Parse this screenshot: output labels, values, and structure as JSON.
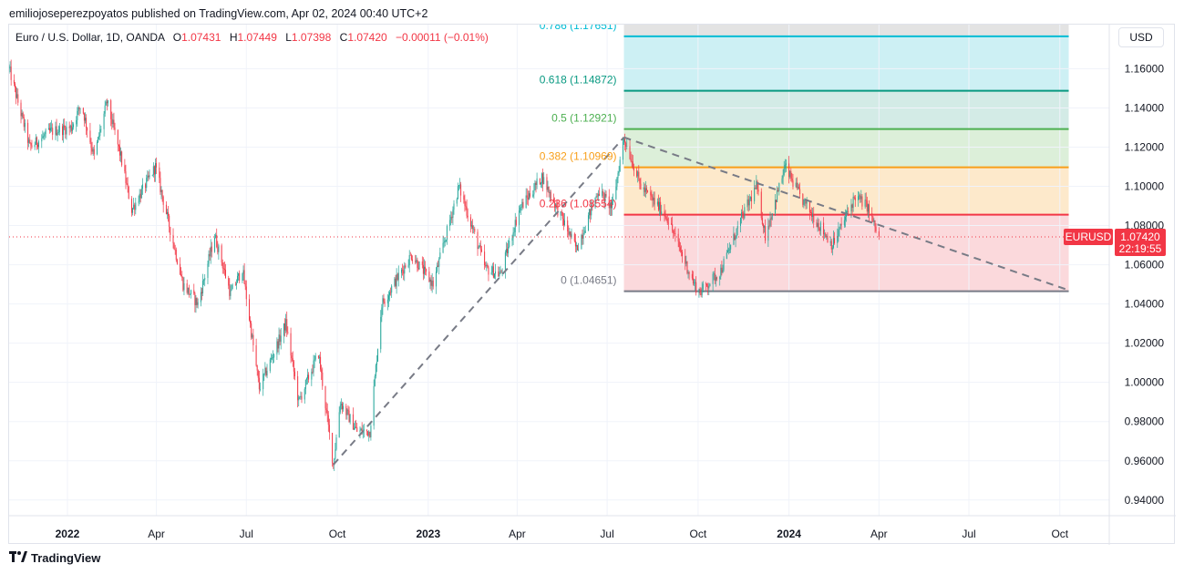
{
  "publisher_line": "emiliojoseperezpoyatos published on TradingView.com, Apr 02, 2024 00:40 UTC+2",
  "footer_brand": "TradingView",
  "footer_icon": "tradingview-logo-icon",
  "currency_button": "USD",
  "legend": {
    "symbol": "Euro / U.S. Dollar, 1D, OANDA",
    "o_key": "O",
    "o_val": "1.07431",
    "h_key": "H",
    "h_val": "1.07449",
    "l_key": "L",
    "l_val": "1.07398",
    "c_key": "C",
    "c_val": "1.07420",
    "change": "−0.00011 (−0.01%)"
  },
  "colors": {
    "up": "#26a69a",
    "down": "#f23645",
    "grid": "#f0f3fa",
    "trend": "#787b86"
  },
  "chart_data": {
    "type": "candlestick",
    "symbol": "EURUSD",
    "ylim": [
      0.932,
      1.1825
    ],
    "y_ticks": [
      "0.94000",
      "0.96000",
      "0.98000",
      "1.00000",
      "1.02000",
      "1.04000",
      "1.06000",
      "1.08000",
      "1.10000",
      "1.12000",
      "1.14000",
      "1.16000"
    ],
    "x_range": [
      "2021-11-03",
      "2024-11-20"
    ],
    "x_ticks": [
      {
        "label": "2022",
        "date": "2022-01-01",
        "bold": true
      },
      {
        "label": "Apr",
        "date": "2022-04-01",
        "bold": false
      },
      {
        "label": "Jul",
        "date": "2022-07-01",
        "bold": false
      },
      {
        "label": "Oct",
        "date": "2022-10-01",
        "bold": false
      },
      {
        "label": "2023",
        "date": "2023-01-01",
        "bold": true
      },
      {
        "label": "Apr",
        "date": "2023-04-01",
        "bold": false
      },
      {
        "label": "Jul",
        "date": "2023-07-01",
        "bold": false
      },
      {
        "label": "Oct",
        "date": "2023-10-01",
        "bold": false
      },
      {
        "label": "2024",
        "date": "2024-01-01",
        "bold": true
      },
      {
        "label": "Apr",
        "date": "2024-04-01",
        "bold": false
      },
      {
        "label": "Jul",
        "date": "2024-07-01",
        "bold": false
      },
      {
        "label": "Oct",
        "date": "2024-10-01",
        "bold": false
      }
    ],
    "price_path": [
      [
        "2021-11-03",
        1.16
      ],
      [
        "2021-11-24",
        1.12
      ],
      [
        "2021-12-15",
        1.128
      ],
      [
        "2022-01-05",
        1.13
      ],
      [
        "2022-01-15",
        1.142
      ],
      [
        "2022-01-28",
        1.115
      ],
      [
        "2022-02-10",
        1.143
      ],
      [
        "2022-02-24",
        1.115
      ],
      [
        "2022-03-07",
        1.088
      ],
      [
        "2022-03-31",
        1.11
      ],
      [
        "2022-04-28",
        1.05
      ],
      [
        "2022-05-13",
        1.04
      ],
      [
        "2022-05-30",
        1.075
      ],
      [
        "2022-06-15",
        1.045
      ],
      [
        "2022-06-27",
        1.058
      ],
      [
        "2022-07-14",
        0.997
      ],
      [
        "2022-08-10",
        1.03
      ],
      [
        "2022-08-23",
        0.99
      ],
      [
        "2022-09-12",
        1.015
      ],
      [
        "2022-09-27",
        0.958
      ],
      [
        "2022-10-04",
        0.99
      ],
      [
        "2022-10-21",
        0.975
      ],
      [
        "2022-11-03",
        0.975
      ],
      [
        "2022-11-15",
        1.04
      ],
      [
        "2022-12-15",
        1.065
      ],
      [
        "2023-01-06",
        1.05
      ],
      [
        "2023-02-01",
        1.1
      ],
      [
        "2023-02-28",
        1.058
      ],
      [
        "2023-03-15",
        1.055
      ],
      [
        "2023-04-03",
        1.088
      ],
      [
        "2023-04-26",
        1.105
      ],
      [
        "2023-05-31",
        1.068
      ],
      [
        "2023-06-22",
        1.098
      ],
      [
        "2023-07-06",
        1.089
      ],
      [
        "2023-07-18",
        1.125
      ],
      [
        "2023-08-04",
        1.1
      ],
      [
        "2023-08-30",
        1.085
      ],
      [
        "2023-09-27",
        1.05
      ],
      [
        "2023-10-03",
        1.046
      ],
      [
        "2023-10-24",
        1.057
      ],
      [
        "2023-11-15",
        1.085
      ],
      [
        "2023-11-29",
        1.1
      ],
      [
        "2023-12-08",
        1.075
      ],
      [
        "2023-12-28",
        1.11
      ],
      [
        "2024-01-12",
        1.095
      ],
      [
        "2024-02-14",
        1.07
      ],
      [
        "2024-03-08",
        1.095
      ],
      [
        "2024-03-20",
        1.09
      ],
      [
        "2024-03-28",
        1.079
      ],
      [
        "2024-04-01",
        1.0742
      ]
    ],
    "fibonacci": {
      "levels": [
        {
          "label": "0.786 (1.17651)",
          "ratio": 0.786,
          "price": 1.17651,
          "color": "#00bcd4",
          "fill": "#cdf0f4"
        },
        {
          "label": "0.618 (1.14872)",
          "ratio": 0.618,
          "price": 1.14872,
          "color": "#089981",
          "fill": "#d3ebe6"
        },
        {
          "label": "0.5 (1.12921)",
          "ratio": 0.5,
          "price": 1.12921,
          "color": "#4caf50",
          "fill": "#dcefd9"
        },
        {
          "label": "0.382 (1.10969)",
          "ratio": 0.382,
          "price": 1.10969,
          "color": "#f89f1a",
          "fill": "#fde9cb"
        },
        {
          "label": "0.236 (1.08554)",
          "ratio": 0.236,
          "price": 1.08554,
          "color": "#f23645",
          "fill": "#fbd9dc"
        },
        {
          "label": "0 (1.04651)",
          "ratio": 0,
          "price": 1.04651,
          "color": "#787b86",
          "fill": ""
        }
      ],
      "top_fill": "#e3e3e3",
      "start_date": "2023-07-18",
      "end_date": "2024-10-10"
    },
    "trend_lines": [
      {
        "from": [
          "2022-09-27",
          0.958
        ],
        "to": [
          "2023-07-18",
          1.125
        ]
      },
      {
        "from": [
          "2023-07-18",
          1.125
        ],
        "to": [
          "2024-10-10",
          1.047
        ]
      }
    ],
    "last_price": {
      "symbol": "EURUSD",
      "price": "1.07420",
      "countdown": "22:19:55",
      "value": 1.0742
    }
  }
}
